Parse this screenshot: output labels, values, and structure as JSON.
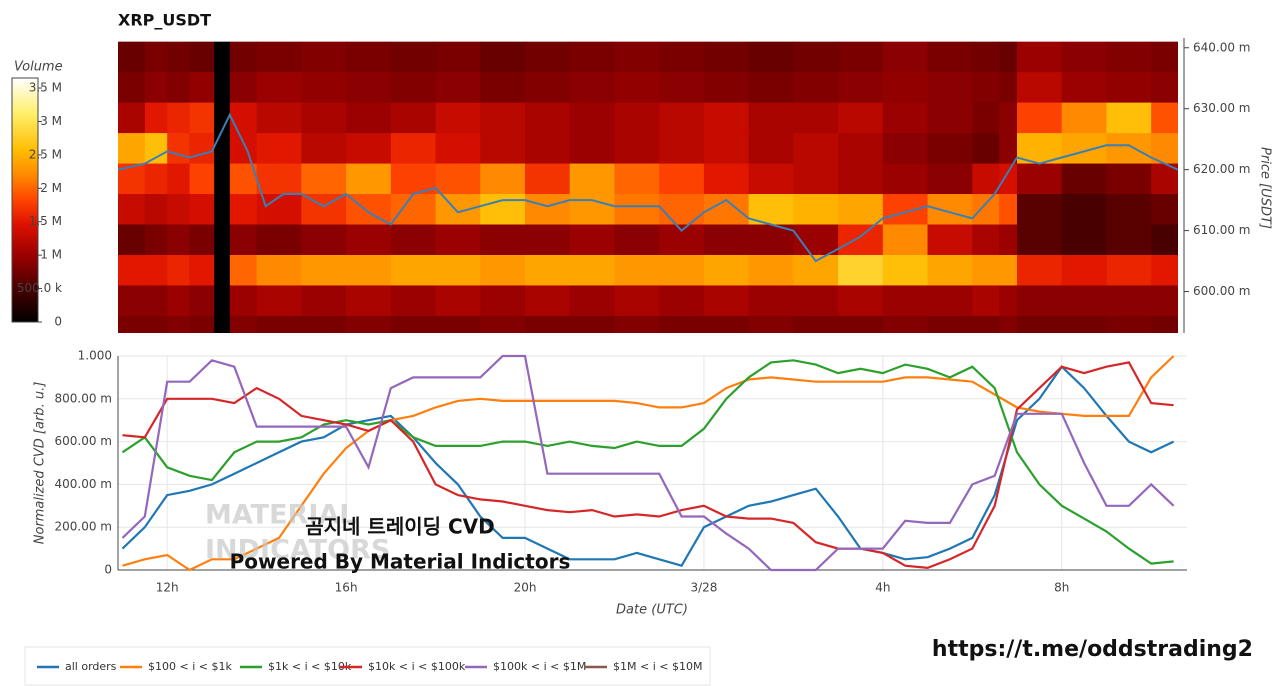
{
  "chart_data": [
    {
      "type": "heatmap",
      "title": "XRP_USDT",
      "ylabel": "Price [USDT]",
      "colorbar_title": "Volume",
      "x_edges": [
        10.9,
        11.5,
        12,
        12.5,
        13.05,
        13.4,
        14,
        15,
        16,
        17,
        18,
        19,
        20,
        21,
        22,
        23,
        24,
        25,
        26,
        27,
        28,
        29,
        30,
        30.6,
        31,
        32,
        33,
        34,
        34.6
      ],
      "y_edges": [
        0.641,
        0.636,
        0.631,
        0.626,
        0.621,
        0.616,
        0.611,
        0.606,
        0.601,
        0.596,
        0.591
      ],
      "z": [
        [
          700000,
          800000,
          750000,
          700000,
          0,
          750000,
          800000,
          850000,
          800000,
          750000,
          800000,
          700000,
          750000,
          800000,
          850000,
          800000,
          750000,
          700000,
          750000,
          800000,
          900000,
          800000,
          750000,
          700000,
          1000000,
          900000,
          850000,
          800000
        ],
        [
          800000,
          900000,
          850000,
          950000,
          0,
          900000,
          1000000,
          950000,
          900000,
          850000,
          900000,
          800000,
          850000,
          900000,
          950000,
          900000,
          850000,
          800000,
          850000,
          900000,
          950000,
          900000,
          850000,
          800000,
          1200000,
          1000000,
          950000,
          900000
        ],
        [
          1100000,
          1500000,
          1600000,
          1700000,
          0,
          1400000,
          1200000,
          1100000,
          1000000,
          1100000,
          1300000,
          1200000,
          1100000,
          1000000,
          1100000,
          1200000,
          1300000,
          1100000,
          1100000,
          1200000,
          1000000,
          900000,
          800000,
          900000,
          1800000,
          2200000,
          2600000,
          1900000
        ],
        [
          2400000,
          2600000,
          1700000,
          1600000,
          0,
          1400000,
          1500000,
          1200000,
          1300000,
          1600000,
          1400000,
          1200000,
          1100000,
          1000000,
          1100000,
          1200000,
          1300000,
          1100000,
          1200000,
          1100000,
          900000,
          800000,
          700000,
          900000,
          2500000,
          2400000,
          2300000,
          2200000
        ],
        [
          1700000,
          1600000,
          1500000,
          1800000,
          0,
          1900000,
          1700000,
          2000000,
          2300000,
          1800000,
          1900000,
          2200000,
          1700000,
          2300000,
          2000000,
          1800000,
          1500000,
          1300000,
          1200000,
          1100000,
          1000000,
          900000,
          1300000,
          1400000,
          1000000,
          700000,
          800000,
          1100000
        ],
        [
          1300000,
          1200000,
          1300000,
          1400000,
          0,
          1500000,
          1400000,
          1700000,
          1900000,
          2000000,
          2300000,
          2600000,
          2200000,
          2300000,
          2100000,
          2000000,
          2100000,
          2600000,
          2500000,
          2400000,
          1800000,
          2200000,
          2100000,
          1900000,
          600000,
          500000,
          600000,
          700000
        ],
        [
          700000,
          800000,
          900000,
          800000,
          0,
          900000,
          800000,
          900000,
          1000000,
          900000,
          1000000,
          900000,
          900000,
          1000000,
          900000,
          1000000,
          900000,
          900000,
          1000000,
          1600000,
          2200000,
          1300000,
          1100000,
          1000000,
          600000,
          500000,
          600000,
          500000
        ],
        [
          1500000,
          1500000,
          1600000,
          1500000,
          0,
          2000000,
          2200000,
          2300000,
          2300000,
          2400000,
          2400000,
          2300000,
          2400000,
          2400000,
          2300000,
          2300000,
          2400000,
          2300000,
          2400000,
          2800000,
          2600000,
          2400000,
          2300000,
          2300000,
          1600000,
          1500000,
          1600000,
          1500000
        ],
        [
          900000,
          900000,
          1000000,
          900000,
          0,
          1000000,
          1100000,
          1000000,
          1100000,
          1000000,
          1100000,
          1000000,
          1100000,
          1000000,
          1100000,
          1000000,
          1100000,
          1000000,
          1000000,
          1100000,
          1000000,
          1000000,
          1100000,
          1000000,
          900000,
          900000,
          900000,
          900000
        ],
        [
          800000,
          800000,
          850000,
          800000,
          0,
          850000,
          800000,
          800000,
          850000,
          800000,
          800000,
          850000,
          800000,
          800000,
          850000,
          800000,
          800000,
          850000,
          800000,
          800000,
          850000,
          800000,
          800000,
          850000,
          750000,
          750000,
          800000,
          750000
        ]
      ],
      "zlim": [
        0,
        3650000
      ],
      "zticks": [
        0,
        {
          "value": 500000,
          "label": "500.0 k"
        },
        {
          "value": 1000000,
          "label": "1 M"
        },
        {
          "value": 1500000,
          "label": "1.5 M"
        },
        {
          "value": 2000000,
          "label": "2 M"
        },
        {
          "value": 2500000,
          "label": "2.5 M"
        },
        {
          "value": 3000000,
          "label": "3 M"
        },
        {
          "value": 3500000,
          "label": "3.5 M"
        }
      ],
      "colorscale": [
        [
          0,
          "#000000"
        ],
        [
          0.14,
          "#4a0000"
        ],
        [
          0.27,
          "#990000"
        ],
        [
          0.4,
          "#dd1100"
        ],
        [
          0.5,
          "#ff4400"
        ],
        [
          0.6,
          "#ff8800"
        ],
        [
          0.7,
          "#ffbb00"
        ],
        [
          0.85,
          "#ffee66"
        ],
        [
          1,
          "#ffffff"
        ]
      ],
      "xlim": [
        10.9,
        34.6
      ],
      "ylim": [
        0.5932,
        0.6416
      ],
      "yticks": [
        {
          "value": 0.6,
          "label": "600.00 m"
        },
        {
          "value": 0.61,
          "label": "610.00 m"
        },
        {
          "value": 0.62,
          "label": "620.00 m"
        },
        {
          "value": 0.63,
          "label": "630.00 m"
        },
        {
          "value": 0.64,
          "label": "640.00 m"
        }
      ],
      "price": {
        "color": "#3a7fb5",
        "x": [
          10.9,
          11.5,
          12,
          12.5,
          13,
          13.4,
          13.8,
          14.2,
          14.6,
          15,
          15.5,
          16,
          16.5,
          17,
          17.5,
          18,
          18.5,
          19,
          19.5,
          20,
          20.5,
          21,
          21.5,
          22,
          22.5,
          23,
          23.5,
          24,
          24.5,
          25,
          25.5,
          26,
          26.5,
          27,
          27.5,
          28,
          28.5,
          29,
          29.5,
          30,
          30.5,
          31,
          31.5,
          32,
          32.5,
          33,
          33.5,
          34,
          34.6
        ],
        "values": [
          0.62,
          0.621,
          0.623,
          0.622,
          0.623,
          0.629,
          0.623,
          0.614,
          0.616,
          0.616,
          0.614,
          0.616,
          0.613,
          0.611,
          0.616,
          0.617,
          0.613,
          0.614,
          0.615,
          0.615,
          0.614,
          0.615,
          0.615,
          0.614,
          0.614,
          0.614,
          0.61,
          0.613,
          0.615,
          0.612,
          0.611,
          0.61,
          0.605,
          0.607,
          0.609,
          0.612,
          0.613,
          0.614,
          0.613,
          0.612,
          0.616,
          0.622,
          0.621,
          0.622,
          0.623,
          0.624,
          0.624,
          0.622,
          0.62
        ]
      }
    },
    {
      "type": "line",
      "xlabel": "Date (UTC)",
      "ylabel": "Normalized CVD [arb. u.]",
      "x": [
        11,
        11.5,
        12,
        12.5,
        13,
        13.5,
        14,
        14.5,
        15,
        15.5,
        16,
        16.5,
        17,
        17.5,
        18,
        18.5,
        19,
        19.5,
        20,
        20.5,
        21,
        21.5,
        22,
        22.5,
        23,
        23.5,
        24,
        24.5,
        25,
        25.5,
        26,
        26.5,
        27,
        27.5,
        28,
        28.5,
        29,
        29.5,
        30,
        30.5,
        31,
        31.5,
        32,
        32.5,
        33,
        33.5,
        34,
        34.5
      ],
      "xlim": [
        10.9,
        34.8
      ],
      "xticks": [
        {
          "value": 12,
          "label": "12h"
        },
        {
          "value": 16,
          "label": "16h"
        },
        {
          "value": 20,
          "label": "20h"
        },
        {
          "value": 24,
          "label": "3/28"
        },
        {
          "value": 28,
          "label": "4h"
        },
        {
          "value": 32,
          "label": "8h"
        }
      ],
      "ylim": [
        0,
        1
      ],
      "yticks": [
        0,
        {
          "value": 0.2,
          "label": "200.00 m"
        },
        {
          "value": 0.4,
          "label": "400.00 m"
        },
        {
          "value": 0.6,
          "label": "600.00 m"
        },
        {
          "value": 0.8,
          "label": "800.00 m"
        },
        {
          "value": 1,
          "label": "1.000"
        }
      ],
      "grid": true,
      "series": [
        {
          "name": "all orders",
          "color": "#1f77b4",
          "values": [
            0.1,
            0.2,
            0.35,
            0.37,
            0.4,
            0.45,
            0.5,
            0.55,
            0.6,
            0.62,
            0.68,
            0.7,
            0.72,
            0.62,
            0.5,
            0.4,
            0.25,
            0.15,
            0.15,
            0.1,
            0.05,
            0.05,
            0.05,
            0.08,
            0.05,
            0.02,
            0.2,
            0.25,
            0.3,
            0.32,
            0.35,
            0.38,
            0.25,
            0.1,
            0.08,
            0.05,
            0.06,
            0.1,
            0.15,
            0.35,
            0.7,
            0.8,
            0.95,
            0.85,
            0.72,
            0.6,
            0.55,
            0.6
          ]
        },
        {
          "name": "$100 < i < $1k",
          "color": "#ff7f0e",
          "values": [
            0.02,
            0.05,
            0.07,
            0,
            0.05,
            0.05,
            0.1,
            0.15,
            0.3,
            0.45,
            0.57,
            0.65,
            0.7,
            0.72,
            0.76,
            0.79,
            0.8,
            0.79,
            0.79,
            0.79,
            0.79,
            0.79,
            0.79,
            0.78,
            0.76,
            0.76,
            0.78,
            0.85,
            0.89,
            0.9,
            0.89,
            0.88,
            0.88,
            0.88,
            0.88,
            0.9,
            0.9,
            0.89,
            0.88,
            0.82,
            0.76,
            0.74,
            0.73,
            0.72,
            0.72,
            0.72,
            0.9,
            1.0
          ]
        },
        {
          "name": "$1k < i < $10k",
          "color": "#2ca02c",
          "values": [
            0.55,
            0.62,
            0.48,
            0.44,
            0.42,
            0.55,
            0.6,
            0.6,
            0.62,
            0.68,
            0.7,
            0.68,
            0.7,
            0.62,
            0.58,
            0.58,
            0.58,
            0.6,
            0.6,
            0.58,
            0.6,
            0.58,
            0.57,
            0.6,
            0.58,
            0.58,
            0.66,
            0.8,
            0.9,
            0.97,
            0.98,
            0.96,
            0.92,
            0.94,
            0.92,
            0.96,
            0.94,
            0.9,
            0.95,
            0.85,
            0.55,
            0.4,
            0.3,
            0.24,
            0.18,
            0.1,
            0.03,
            0.04
          ]
        },
        {
          "name": "$10k < i < $100k",
          "color": "#d62728",
          "values": [
            0.63,
            0.62,
            0.8,
            0.8,
            0.8,
            0.78,
            0.85,
            0.8,
            0.72,
            0.7,
            0.68,
            0.65,
            0.7,
            0.6,
            0.4,
            0.35,
            0.33,
            0.32,
            0.3,
            0.28,
            0.27,
            0.28,
            0.25,
            0.26,
            0.25,
            0.28,
            0.3,
            0.25,
            0.24,
            0.24,
            0.22,
            0.13,
            0.1,
            0.1,
            0.08,
            0.02,
            0.01,
            0.05,
            0.1,
            0.3,
            0.75,
            0.85,
            0.95,
            0.92,
            0.95,
            0.97,
            0.78,
            0.77
          ]
        },
        {
          "name": "$100k < i < $1M",
          "color": "#9467bd",
          "values": [
            0.15,
            0.25,
            0.88,
            0.88,
            0.98,
            0.95,
            0.67,
            0.67,
            0.67,
            0.67,
            0.67,
            0.48,
            0.85,
            0.9,
            0.9,
            0.9,
            0.9,
            1.0,
            1.0,
            0.45,
            0.45,
            0.45,
            0.45,
            0.45,
            0.45,
            0.25,
            0.25,
            0.17,
            0.1,
            0,
            0,
            0,
            0.1,
            0.1,
            0.1,
            0.23,
            0.22,
            0.22,
            0.4,
            0.44,
            0.73,
            0.73,
            0.73,
            0.5,
            0.3,
            0.3,
            0.4,
            0.3
          ]
        },
        {
          "name": "$1M < i < $10M",
          "color": "#8c564b",
          "values": [
            null,
            null,
            null,
            null,
            null,
            null,
            null,
            null,
            null,
            null,
            null,
            null,
            null,
            null,
            null,
            null,
            null,
            null,
            null,
            null,
            null,
            null,
            null,
            null,
            null,
            null,
            null,
            null,
            null,
            null,
            null,
            null,
            null,
            null,
            null,
            null,
            null,
            null,
            null,
            null,
            null,
            null,
            null,
            null,
            null,
            null,
            null,
            null
          ]
        }
      ],
      "legend": "bottom-left",
      "watermark": [
        "MATERIAL",
        "INDICATORS"
      ],
      "annotations": [
        "곰지네 트레이딩 CVD",
        "Powered By Material Indictors"
      ],
      "link": "https://t.me/oddstrading2"
    }
  ]
}
